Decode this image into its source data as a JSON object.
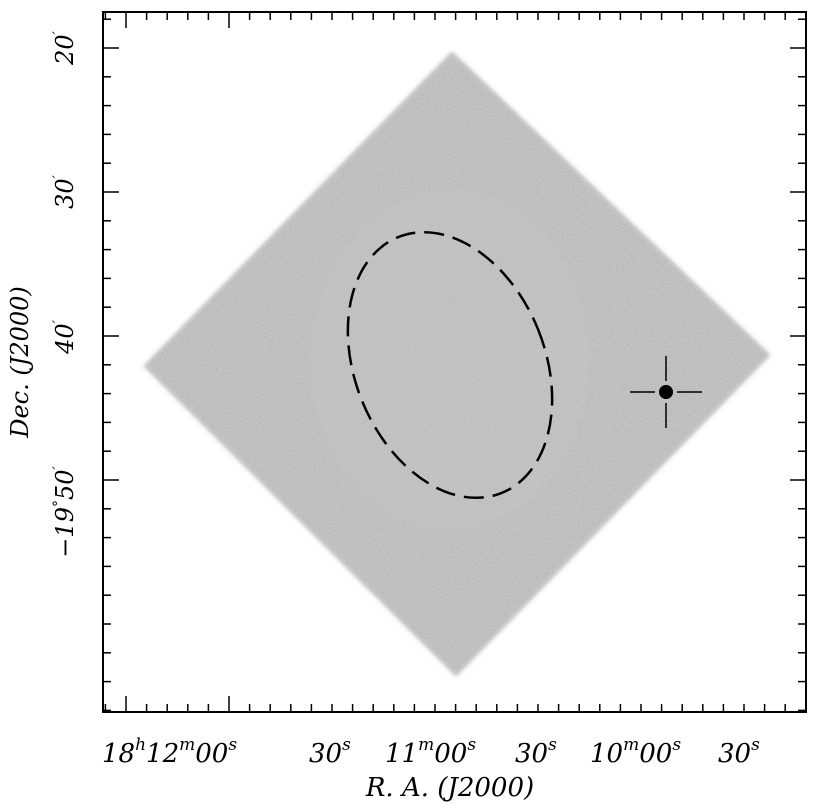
{
  "chart_data": {
    "type": "image",
    "xlabel": "R. A. (J2000)",
    "ylabel": "Dec. (J2000)",
    "x_ticks": [
      {
        "h": "18",
        "m": "12",
        "s": "00"
      },
      {
        "s": "30"
      },
      {
        "m": "11",
        "s": "00"
      },
      {
        "s": "30"
      },
      {
        "m": "10",
        "s": "00"
      },
      {
        "s": "30"
      }
    ],
    "y_ticks": [
      {
        "deg": "",
        "min": "20"
      },
      {
        "deg": "",
        "min": "30"
      },
      {
        "deg": "",
        "min": "40"
      },
      {
        "deg": "−19",
        "min": "50"
      }
    ],
    "image": {
      "description_shape": "diamond",
      "colormap": "grayscale"
    },
    "ellipse": {
      "style": "dashed"
    },
    "source_marker": {
      "style": "filled-circle-with-crosshair"
    }
  }
}
